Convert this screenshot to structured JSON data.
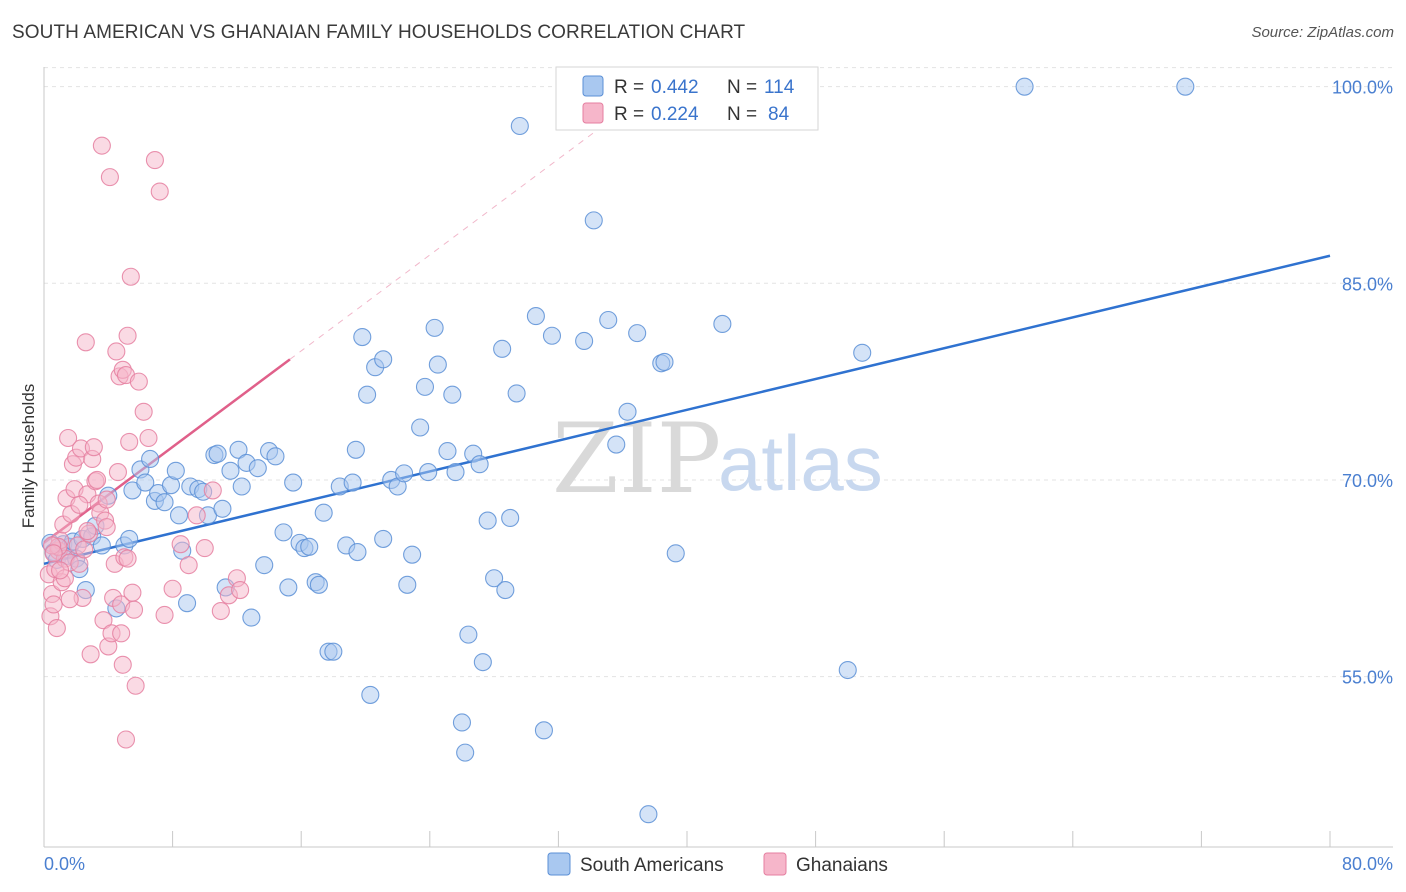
{
  "header": {
    "title": "SOUTH AMERICAN VS GHANAIAN FAMILY HOUSEHOLDS CORRELATION CHART",
    "source": "Source: ZipAtlas.com"
  },
  "watermark": {
    "zip": "ZIP",
    "atlas": "atlas"
  },
  "colors": {
    "blue_fill": "#a9c8f0",
    "blue_stroke": "#5b8fd6",
    "blue_line": "#2f72d0",
    "pink_fill": "#f6b6ca",
    "pink_stroke": "#e57fa0",
    "pink_line": "#e0608a",
    "grid": "#e3e3e3",
    "tick_text": "#4a7fd0"
  },
  "legend": {
    "rows": [
      {
        "r_label": "R =",
        "r_value": "0.442",
        "n_label": "N =",
        "n_value": "114"
      },
      {
        "r_label": "R =",
        "r_value": "0.224",
        "n_label": "N =",
        "n_value": "84"
      }
    ]
  },
  "bottom_legend": [
    "South Americans",
    "Ghanaians"
  ],
  "chart_data": {
    "type": "scatter",
    "title": "SOUTH AMERICAN VS GHANAIAN FAMILY HOUSEHOLDS CORRELATION CHART",
    "xlabel": "",
    "ylabel": "Family Households",
    "xlim": [
      0,
      80
    ],
    "ylim": [
      42,
      101.5
    ],
    "x_tick_labels": [
      "0.0%",
      "80.0%"
    ],
    "y_ticks": [
      55,
      70,
      85,
      100
    ],
    "y_tick_labels": [
      "55.0%",
      "70.0%",
      "85.0%",
      "100.0%"
    ],
    "grid": true,
    "legend_position": "top-center",
    "series": [
      {
        "name": "South Americans",
        "r": 0.442,
        "n": 114,
        "trend": {
          "x": [
            0,
            80
          ],
          "y": [
            63.6,
            87.1
          ]
        },
        "points": [
          [
            0.4,
            65.2
          ],
          [
            0.6,
            64.5
          ],
          [
            0.8,
            63.9
          ],
          [
            1.0,
            64.8
          ],
          [
            1.2,
            65.1
          ],
          [
            1.4,
            64.2
          ],
          [
            1.6,
            64.9
          ],
          [
            1.8,
            65.3
          ],
          [
            2.0,
            64.0
          ],
          [
            2.2,
            63.2
          ],
          [
            2.4,
            65.5
          ],
          [
            2.6,
            61.6
          ],
          [
            3.0,
            65.7
          ],
          [
            3.2,
            66.5
          ],
          [
            3.6,
            65.0
          ],
          [
            4.0,
            68.8
          ],
          [
            4.5,
            60.2
          ],
          [
            5.0,
            65.0
          ],
          [
            5.3,
            65.5
          ],
          [
            5.5,
            69.2
          ],
          [
            6.0,
            70.8
          ],
          [
            6.3,
            69.8
          ],
          [
            6.6,
            71.6
          ],
          [
            6.9,
            68.4
          ],
          [
            7.1,
            69.0
          ],
          [
            7.5,
            68.3
          ],
          [
            7.9,
            69.6
          ],
          [
            8.2,
            70.7
          ],
          [
            8.4,
            67.3
          ],
          [
            8.6,
            64.6
          ],
          [
            8.9,
            60.6
          ],
          [
            9.1,
            69.5
          ],
          [
            9.6,
            69.3
          ],
          [
            9.9,
            69.1
          ],
          [
            10.2,
            67.3
          ],
          [
            10.6,
            71.9
          ],
          [
            10.8,
            72.0
          ],
          [
            11.1,
            67.8
          ],
          [
            11.3,
            61.8
          ],
          [
            11.6,
            70.7
          ],
          [
            12.1,
            72.3
          ],
          [
            12.3,
            69.5
          ],
          [
            12.6,
            71.3
          ],
          [
            12.9,
            59.5
          ],
          [
            13.3,
            70.9
          ],
          [
            13.7,
            63.5
          ],
          [
            14.0,
            72.2
          ],
          [
            14.4,
            71.8
          ],
          [
            14.9,
            66.0
          ],
          [
            15.2,
            61.8
          ],
          [
            15.5,
            69.8
          ],
          [
            15.9,
            65.2
          ],
          [
            16.2,
            64.8
          ],
          [
            16.5,
            64.9
          ],
          [
            16.9,
            62.2
          ],
          [
            17.1,
            62.0
          ],
          [
            17.4,
            67.5
          ],
          [
            17.7,
            56.9
          ],
          [
            18.0,
            56.9
          ],
          [
            18.4,
            69.5
          ],
          [
            18.8,
            65.0
          ],
          [
            19.2,
            69.8
          ],
          [
            19.4,
            72.3
          ],
          [
            19.5,
            64.5
          ],
          [
            19.8,
            80.9
          ],
          [
            20.1,
            76.5
          ],
          [
            20.3,
            53.6
          ],
          [
            20.6,
            78.6
          ],
          [
            21.1,
            79.2
          ],
          [
            21.1,
            65.5
          ],
          [
            21.6,
            70.0
          ],
          [
            22.0,
            69.5
          ],
          [
            22.4,
            70.5
          ],
          [
            22.6,
            62.0
          ],
          [
            22.9,
            64.3
          ],
          [
            23.4,
            74.0
          ],
          [
            23.7,
            77.1
          ],
          [
            23.9,
            70.6
          ],
          [
            24.3,
            81.6
          ],
          [
            24.5,
            78.8
          ],
          [
            25.1,
            72.2
          ],
          [
            25.4,
            76.5
          ],
          [
            25.6,
            70.6
          ],
          [
            26.0,
            51.5
          ],
          [
            26.2,
            49.2
          ],
          [
            26.4,
            58.2
          ],
          [
            26.7,
            72.0
          ],
          [
            27.1,
            71.2
          ],
          [
            27.3,
            56.1
          ],
          [
            27.6,
            66.9
          ],
          [
            28.0,
            62.5
          ],
          [
            28.5,
            80.0
          ],
          [
            28.7,
            61.6
          ],
          [
            29.0,
            67.1
          ],
          [
            29.4,
            76.6
          ],
          [
            29.6,
            97.0
          ],
          [
            30.6,
            82.5
          ],
          [
            31.1,
            50.9
          ],
          [
            31.6,
            81.0
          ],
          [
            33.6,
            80.6
          ],
          [
            34.2,
            89.8
          ],
          [
            35.1,
            82.2
          ],
          [
            35.6,
            72.7
          ],
          [
            36.3,
            75.2
          ],
          [
            36.9,
            81.2
          ],
          [
            37.6,
            44.5
          ],
          [
            38.4,
            78.9
          ],
          [
            38.6,
            79.0
          ],
          [
            39.3,
            64.4
          ],
          [
            42.2,
            81.9
          ],
          [
            50.0,
            55.5
          ],
          [
            50.9,
            79.7
          ],
          [
            61.0,
            100.0
          ],
          [
            71.0,
            100.0
          ]
        ]
      },
      {
        "name": "Ghanaians",
        "r": 0.224,
        "n": 84,
        "trend": {
          "x": [
            0,
            15.3
          ],
          "y": [
            65.2,
            79.2
          ]
        },
        "points": [
          [
            0.3,
            62.8
          ],
          [
            0.4,
            59.6
          ],
          [
            0.5,
            61.3
          ],
          [
            0.6,
            60.5
          ],
          [
            0.7,
            63.2
          ],
          [
            0.8,
            58.7
          ],
          [
            0.9,
            64.6
          ],
          [
            1.0,
            65.4
          ],
          [
            1.1,
            62.2
          ],
          [
            1.2,
            66.6
          ],
          [
            1.3,
            64.0
          ],
          [
            1.4,
            68.6
          ],
          [
            1.5,
            73.2
          ],
          [
            1.6,
            63.7
          ],
          [
            1.7,
            67.4
          ],
          [
            1.8,
            71.2
          ],
          [
            1.9,
            69.3
          ],
          [
            2.0,
            71.7
          ],
          [
            2.1,
            65.0
          ],
          [
            2.2,
            63.6
          ],
          [
            2.3,
            72.4
          ],
          [
            2.4,
            61.0
          ],
          [
            2.5,
            64.7
          ],
          [
            2.6,
            80.5
          ],
          [
            2.7,
            68.9
          ],
          [
            2.8,
            65.9
          ],
          [
            2.9,
            56.7
          ],
          [
            3.0,
            71.6
          ],
          [
            3.1,
            72.5
          ],
          [
            3.2,
            69.9
          ],
          [
            3.3,
            70.0
          ],
          [
            3.4,
            68.2
          ],
          [
            3.5,
            67.5
          ],
          [
            3.6,
            95.5
          ],
          [
            3.7,
            59.3
          ],
          [
            3.8,
            66.9
          ],
          [
            3.9,
            68.5
          ],
          [
            4.0,
            57.3
          ],
          [
            4.1,
            93.1
          ],
          [
            4.2,
            58.3
          ],
          [
            4.3,
            61.0
          ],
          [
            4.4,
            63.6
          ],
          [
            4.5,
            79.8
          ],
          [
            4.6,
            70.6
          ],
          [
            4.7,
            77.9
          ],
          [
            4.8,
            60.5
          ],
          [
            4.9,
            78.4
          ],
          [
            5.0,
            64.1
          ],
          [
            5.1,
            78.0
          ],
          [
            5.2,
            81.0
          ],
          [
            5.3,
            72.9
          ],
          [
            5.4,
            85.5
          ],
          [
            5.5,
            61.4
          ],
          [
            5.6,
            60.1
          ],
          [
            5.7,
            54.3
          ],
          [
            5.9,
            77.5
          ],
          [
            6.2,
            75.2
          ],
          [
            6.5,
            73.2
          ],
          [
            6.9,
            94.4
          ],
          [
            7.2,
            92.0
          ],
          [
            7.5,
            59.7
          ],
          [
            8.0,
            61.7
          ],
          [
            8.5,
            65.1
          ],
          [
            9.0,
            63.5
          ],
          [
            9.5,
            67.3
          ],
          [
            10.0,
            64.8
          ],
          [
            10.5,
            69.2
          ],
          [
            11.0,
            60.0
          ],
          [
            11.5,
            61.2
          ],
          [
            12.0,
            62.5
          ],
          [
            12.2,
            61.6
          ],
          [
            5.1,
            50.2
          ],
          [
            4.8,
            58.3
          ],
          [
            4.9,
            55.9
          ],
          [
            5.2,
            64.0
          ],
          [
            2.2,
            68.1
          ],
          [
            1.6,
            60.9
          ],
          [
            3.9,
            66.4
          ],
          [
            1.3,
            62.5
          ],
          [
            0.9,
            64.9
          ],
          [
            1.0,
            63.1
          ],
          [
            2.7,
            66.1
          ],
          [
            0.5,
            65.0
          ],
          [
            0.6,
            64.4
          ]
        ]
      }
    ]
  }
}
